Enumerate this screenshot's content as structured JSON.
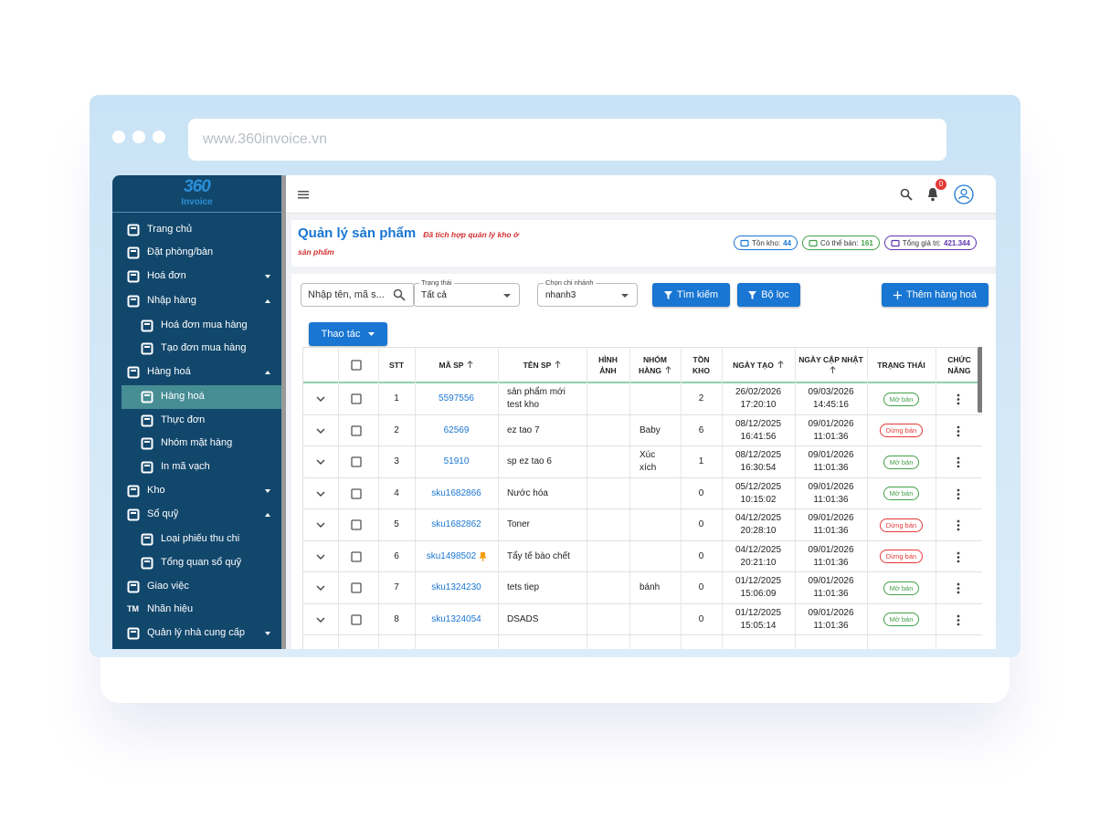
{
  "browser": {
    "url": "www.360invoice.vn"
  },
  "logo": {
    "mark": "360",
    "name": "Invoice"
  },
  "sidebar": {
    "items": [
      {
        "label": "Trang chủ",
        "level": 1,
        "expand": null
      },
      {
        "label": "Đặt phòng/bàn",
        "level": 1,
        "expand": null
      },
      {
        "label": "Hoá đơn",
        "level": 1,
        "expand": "down"
      },
      {
        "label": "Nhập hàng",
        "level": 1,
        "expand": "up"
      },
      {
        "label": "Hoá đơn mua hàng",
        "level": 2,
        "expand": null
      },
      {
        "label": "Tạo đơn mua hàng",
        "level": 2,
        "expand": null
      },
      {
        "label": "Hàng hoá",
        "level": 1,
        "expand": "up"
      },
      {
        "label": "Hàng hoá",
        "level": 2,
        "expand": null,
        "active": true
      },
      {
        "label": "Thực đơn",
        "level": 2,
        "expand": null
      },
      {
        "label": "Nhóm mặt hàng",
        "level": 2,
        "expand": null
      },
      {
        "label": "In mã vạch",
        "level": 2,
        "expand": null
      },
      {
        "label": "Kho",
        "level": 1,
        "expand": "down"
      },
      {
        "label": "Sổ quỹ",
        "level": 1,
        "expand": "up"
      },
      {
        "label": "Loại phiếu thu chi",
        "level": 2,
        "expand": null
      },
      {
        "label": "Tổng quan sổ quỹ",
        "level": 2,
        "expand": null
      },
      {
        "label": "Giao việc",
        "level": 1,
        "expand": null
      },
      {
        "label": "Nhãn hiệu",
        "level": 1,
        "expand": null,
        "icon_text": "TM"
      },
      {
        "label": "Quản lý nhà cung cấp",
        "level": 1,
        "expand": "down"
      }
    ]
  },
  "topbar": {
    "notification_count": "0"
  },
  "header": {
    "title": "Quản lý sản phẩm",
    "note": "Đã tích hợp quản lý kho ở sản phẩm",
    "stats": [
      {
        "label": "Tồn kho:",
        "value": "44",
        "color": "#1976d2"
      },
      {
        "label": "Có thể bán:",
        "value": "161",
        "color": "#43a047"
      },
      {
        "label": "Tổng giá trị:",
        "value": "421.344",
        "color": "#5e35b1"
      }
    ]
  },
  "filters": {
    "search_placeholder": "Nhập tên, mã s...",
    "status_label": "Trạng thái",
    "status_value": "Tất cả",
    "branch_label": "Chọn chi nhánh",
    "branch_value": "nhanh3",
    "search_button": "Tìm kiếm",
    "filter_button": "Bộ lọc",
    "add_button": "Thêm hàng hoá",
    "actions_button": "Thao tác"
  },
  "table": {
    "headers": [
      {
        "label": "STT",
        "sortable": false
      },
      {
        "label": "MÃ SP",
        "sortable": true
      },
      {
        "label": "TÊN SP",
        "sortable": true
      },
      {
        "label": "HÌNH ẢNH",
        "sortable": false
      },
      {
        "label": "NHÓM HÀNG",
        "sortable": true
      },
      {
        "label": "TỒN KHO",
        "sortable": false
      },
      {
        "label": "NGÀY TẠO",
        "sortable": true
      },
      {
        "label": "NGÀY CẬP NHẬT",
        "sortable": true
      },
      {
        "label": "TRẠNG THÁI",
        "sortable": false
      },
      {
        "label": "CHỨC NĂNG",
        "sortable": false
      }
    ],
    "rows": [
      {
        "stt": 1,
        "code": "5597556",
        "name": "sản phẩm mới test kho",
        "group": null,
        "stock": 2,
        "created": "26/02/2026 17:20:10",
        "updated": "09/03/2026 14:45:16",
        "status": "Mở bán",
        "status_color": "#43a047"
      },
      {
        "stt": 2,
        "code": "62569",
        "name": "ez tao 7",
        "group": "Baby",
        "stock": 6,
        "created": "08/12/2025 16:41:56",
        "updated": "09/01/2026 11:01:36",
        "status": "Dừng bán",
        "status_color": "#e53935"
      },
      {
        "stt": 3,
        "code": "51910",
        "name": "sp ez tao 6",
        "group": "Xúc xích",
        "stock": 1,
        "created": "08/12/2025 16:30:54",
        "updated": "09/01/2026 11:01:36",
        "status": "Mở bán",
        "status_color": "#43a047"
      },
      {
        "stt": 4,
        "code": "sku1682866",
        "name": "Nước hóa",
        "group": null,
        "stock": 0,
        "created": "05/12/2025 10:15:02",
        "updated": "09/01/2026 11:01:36",
        "status": "Mở bán",
        "status_color": "#43a047"
      },
      {
        "stt": 5,
        "code": "sku1682862",
        "name": "Toner",
        "group": null,
        "stock": 0,
        "created": "04/12/2025 20:28:10",
        "updated": "09/01/2026 11:01:36",
        "status": "Dừng bán",
        "status_color": "#e53935"
      },
      {
        "stt": 6,
        "code": "sku1498502",
        "pinned": true,
        "name": "Tẩy tế bào chết",
        "group": null,
        "stock": 0,
        "created": "04/12/2025 20:21:10",
        "updated": "09/01/2026 11:01:36",
        "status": "Dừng bán",
        "status_color": "#e53935"
      },
      {
        "stt": 7,
        "code": "sku1324230",
        "name": "tets tiep",
        "group": "bánh",
        "stock": 0,
        "created": "01/12/2025 15:06:09",
        "updated": "09/01/2026 11:01:36",
        "status": "Mở bán",
        "status_color": "#43a047"
      },
      {
        "stt": 8,
        "code": "sku1324054",
        "name": "DSADS",
        "group": null,
        "stock": 0,
        "created": "01/12/2025 15:05:14",
        "updated": "09/01/2026 11:01:36",
        "status": "Mở bán",
        "status_color": "#43a047"
      }
    ]
  }
}
